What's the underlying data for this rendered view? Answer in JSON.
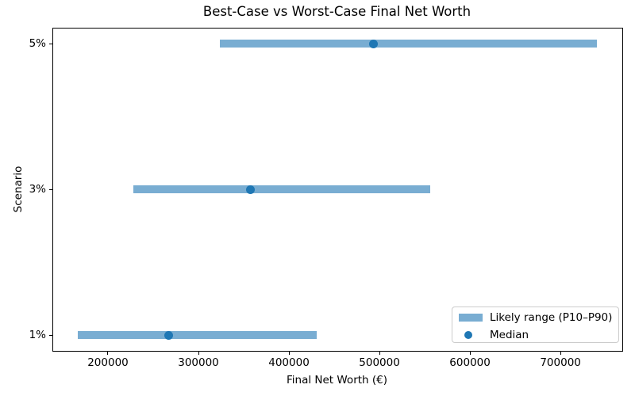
{
  "chart_data": {
    "type": "range_bar_horizontal",
    "title": "Best-Case vs Worst-Case Final Net Worth",
    "xlabel": "Final Net Worth (€)",
    "ylabel": "Scenario",
    "rows": [
      {
        "scenario": "1%",
        "p10": 167000,
        "median": 267000,
        "p90": 431000
      },
      {
        "scenario": "3%",
        "p10": 228000,
        "median": 357000,
        "p90": 556000
      },
      {
        "scenario": "5%",
        "p10": 324000,
        "median": 493000,
        "p90": 740000
      }
    ],
    "xticks": [
      200000,
      300000,
      400000,
      500000,
      600000,
      700000
    ],
    "xlim": [
      139500,
      768300
    ],
    "grid": false,
    "legend": {
      "position": "lower-right",
      "items": [
        {
          "label": "Likely range (P10–P90)",
          "marker": "bar"
        },
        {
          "label": "Median",
          "marker": "dot"
        }
      ]
    },
    "colors": {
      "range_bar": "#79add2",
      "median_dot": "#1f77b4",
      "axis": "#000000",
      "legend_border": "#cccccc"
    }
  }
}
